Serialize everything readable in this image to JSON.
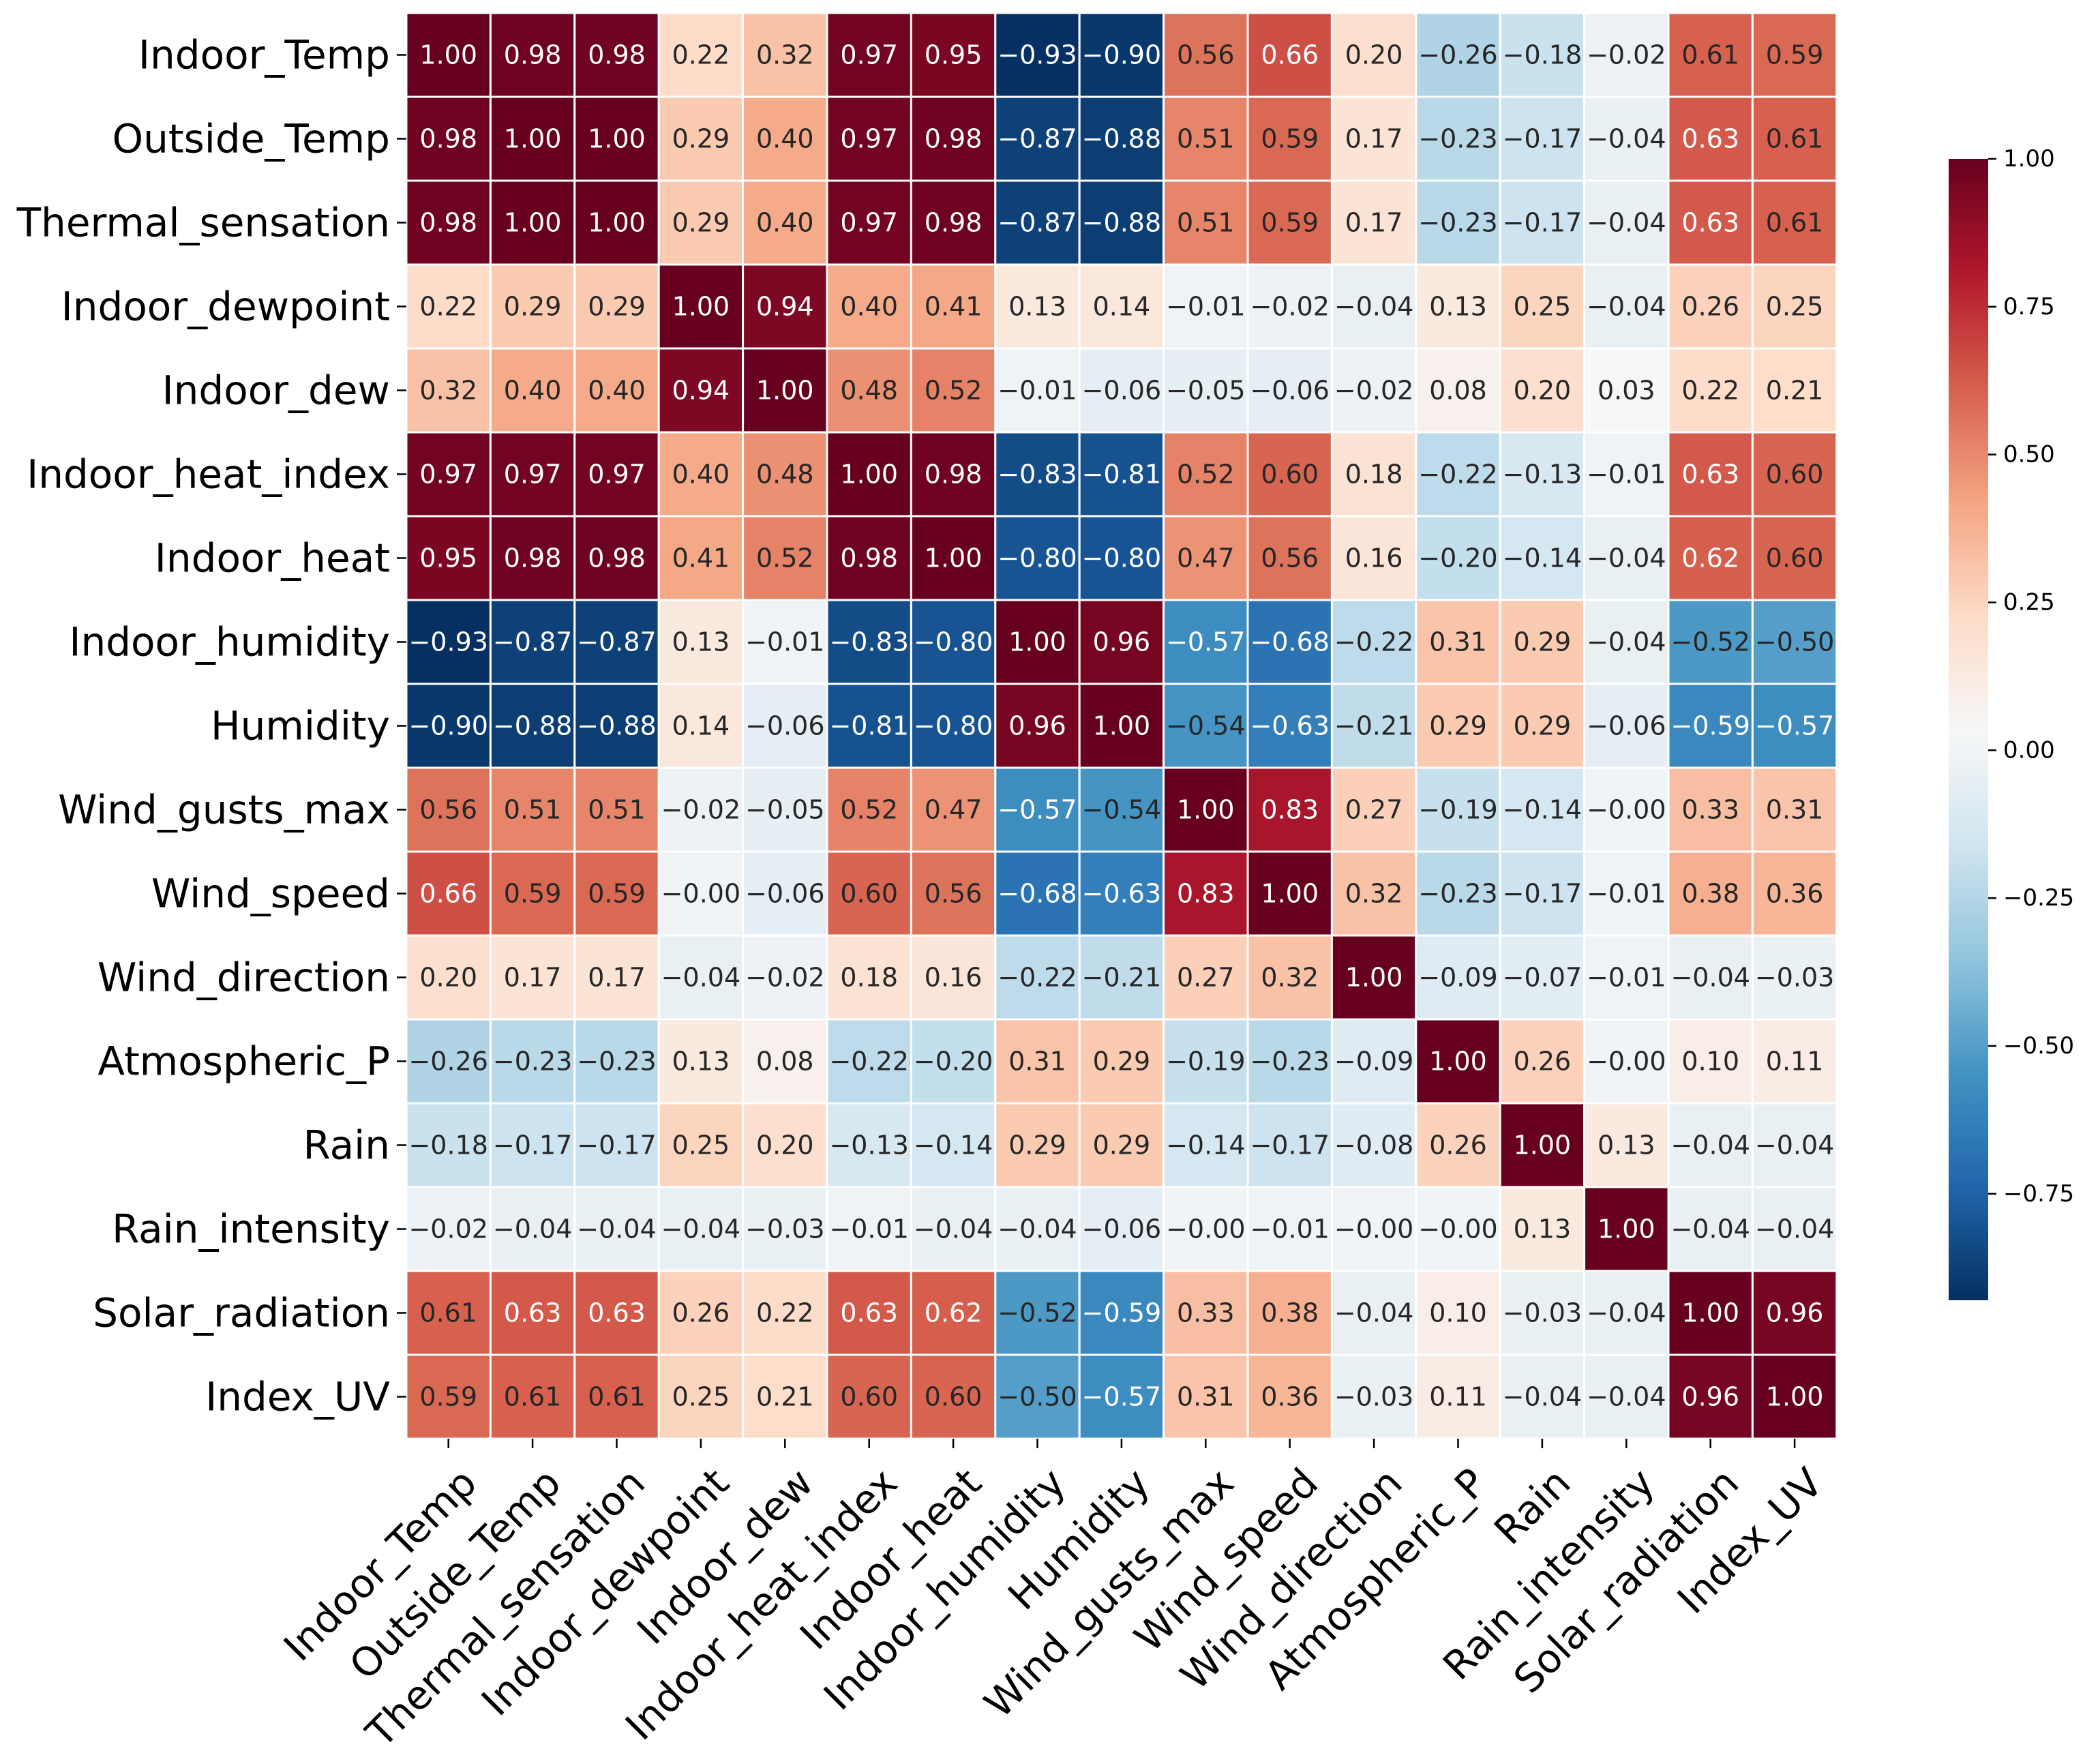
{
  "chart_data": {
    "type": "heatmap",
    "variables": [
      "Indoor_Temp",
      "Outside_Temp",
      "Thermal_sensation",
      "Indoor_dewpoint",
      "Indoor_dew",
      "Indoor_heat_index",
      "Indoor_heat",
      "Indoor_humidity",
      "Humidity",
      "Wind_gusts_max",
      "Wind_speed",
      "Wind_direction",
      "Atmospheric_P",
      "Rain",
      "Rain_intensity",
      "Solar_radiation",
      "Index_UV"
    ],
    "matrix": [
      [
        1.0,
        0.98,
        0.98,
        0.22,
        0.32,
        0.97,
        0.95,
        -0.93,
        -0.9,
        0.56,
        0.66,
        0.2,
        -0.26,
        -0.18,
        -0.02,
        0.61,
        0.59
      ],
      [
        0.98,
        1.0,
        1.0,
        0.29,
        0.4,
        0.97,
        0.98,
        -0.87,
        -0.88,
        0.51,
        0.59,
        0.17,
        -0.23,
        -0.17,
        -0.04,
        0.63,
        0.61
      ],
      [
        0.98,
        1.0,
        1.0,
        0.29,
        0.4,
        0.97,
        0.98,
        -0.87,
        -0.88,
        0.51,
        0.59,
        0.17,
        -0.23,
        -0.17,
        -0.04,
        0.63,
        0.61
      ],
      [
        0.22,
        0.29,
        0.29,
        1.0,
        0.94,
        0.4,
        0.41,
        0.13,
        0.14,
        -0.01,
        -0.02,
        -0.04,
        0.13,
        0.25,
        -0.04,
        0.26,
        0.25
      ],
      [
        0.32,
        0.4,
        0.4,
        0.94,
        1.0,
        0.48,
        0.52,
        -0.01,
        -0.06,
        -0.05,
        -0.06,
        -0.02,
        0.08,
        0.2,
        0.03,
        0.22,
        0.21
      ],
      [
        0.97,
        0.97,
        0.97,
        0.4,
        0.48,
        1.0,
        0.98,
        -0.83,
        -0.81,
        0.52,
        0.6,
        0.18,
        -0.22,
        -0.13,
        -0.01,
        0.63,
        0.6
      ],
      [
        0.95,
        0.98,
        0.98,
        0.41,
        0.52,
        0.98,
        1.0,
        -0.8,
        -0.8,
        0.47,
        0.56,
        0.16,
        -0.2,
        -0.14,
        -0.04,
        0.62,
        0.6
      ],
      [
        -0.93,
        -0.87,
        -0.87,
        0.13,
        -0.01,
        -0.83,
        -0.8,
        1.0,
        0.96,
        -0.57,
        -0.68,
        -0.22,
        0.31,
        0.29,
        -0.04,
        -0.52,
        -0.5
      ],
      [
        -0.9,
        -0.88,
        -0.88,
        0.14,
        -0.06,
        -0.81,
        -0.8,
        0.96,
        1.0,
        -0.54,
        -0.63,
        -0.21,
        0.29,
        0.29,
        -0.06,
        -0.59,
        -0.57
      ],
      [
        0.56,
        0.51,
        0.51,
        -0.02,
        -0.05,
        0.52,
        0.47,
        -0.57,
        -0.54,
        1.0,
        0.83,
        0.27,
        -0.19,
        -0.14,
        -0.0,
        0.33,
        0.31
      ],
      [
        0.66,
        0.59,
        0.59,
        -0.0,
        -0.06,
        0.6,
        0.56,
        -0.68,
        -0.63,
        0.83,
        1.0,
        0.32,
        -0.23,
        -0.17,
        -0.01,
        0.38,
        0.36
      ],
      [
        0.2,
        0.17,
        0.17,
        -0.04,
        -0.02,
        0.18,
        0.16,
        -0.22,
        -0.21,
        0.27,
        0.32,
        1.0,
        -0.09,
        -0.07,
        -0.01,
        -0.04,
        -0.03
      ],
      [
        -0.26,
        -0.23,
        -0.23,
        0.13,
        0.08,
        -0.22,
        -0.2,
        0.31,
        0.29,
        -0.19,
        -0.23,
        -0.09,
        1.0,
        0.26,
        -0.0,
        0.1,
        0.11
      ],
      [
        -0.18,
        -0.17,
        -0.17,
        0.25,
        0.2,
        -0.13,
        -0.14,
        0.29,
        0.29,
        -0.14,
        -0.17,
        -0.08,
        0.26,
        1.0,
        0.13,
        -0.04,
        -0.04
      ],
      [
        -0.02,
        -0.04,
        -0.04,
        -0.04,
        -0.03,
        -0.01,
        -0.04,
        -0.04,
        -0.06,
        -0.0,
        -0.01,
        -0.0,
        -0.0,
        0.13,
        1.0,
        -0.04,
        -0.04
      ],
      [
        0.61,
        0.63,
        0.63,
        0.26,
        0.22,
        0.63,
        0.62,
        -0.52,
        -0.59,
        0.33,
        0.38,
        -0.04,
        0.1,
        -0.03,
        -0.04,
        1.0,
        0.96
      ],
      [
        0.59,
        0.61,
        0.61,
        0.25,
        0.21,
        0.6,
        0.6,
        -0.5,
        -0.57,
        0.31,
        0.36,
        -0.03,
        0.11,
        -0.04,
        -0.04,
        0.96,
        1.0
      ]
    ],
    "vmin": -0.93,
    "vmax": 1.0,
    "colormap": "RdBu_r",
    "colorbar_ticks": [
      1.0,
      0.75,
      0.5,
      0.25,
      0.0,
      -0.25,
      -0.5,
      -0.75
    ],
    "colorbar_tick_labels": [
      "1.00",
      "0.75",
      "0.50",
      "0.25",
      "0.00",
      "−0.25",
      "−0.50",
      "−0.75"
    ],
    "annotation_format": "2 decimals",
    "grid": false,
    "legend": "colorbar right"
  }
}
